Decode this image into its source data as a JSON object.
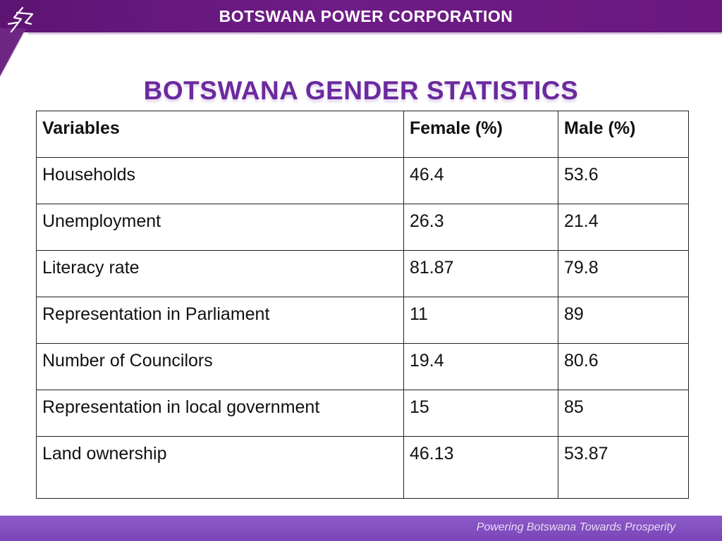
{
  "header": {
    "org_name": "BOTSWANA POWER CORPORATION",
    "logo_icon": "bpc-lightning-logo-icon",
    "accent_color": "#6e1c86"
  },
  "slide": {
    "title": "BOTSWANA GENDER STATISTICS",
    "title_color": "#6b2a9e"
  },
  "table": {
    "headers": [
      "Variables",
      "Female (%)",
      "Male (%)"
    ],
    "rows": [
      [
        "Households",
        "46.4",
        "53.6"
      ],
      [
        "Unemployment",
        "26.3",
        "21.4"
      ],
      [
        "Literacy rate",
        "81.87",
        "79.8"
      ],
      [
        "Representation in Parliament",
        "11",
        "89"
      ],
      [
        "Number of Councilors",
        "19.4",
        "80.6"
      ],
      [
        "Representation in local government",
        "15",
        "85"
      ],
      [
        "Land ownership",
        "46.13",
        "53.87"
      ]
    ]
  },
  "footer": {
    "tagline": "Powering Botswana Towards Prosperity",
    "bar_color": "#8d5bc8"
  }
}
